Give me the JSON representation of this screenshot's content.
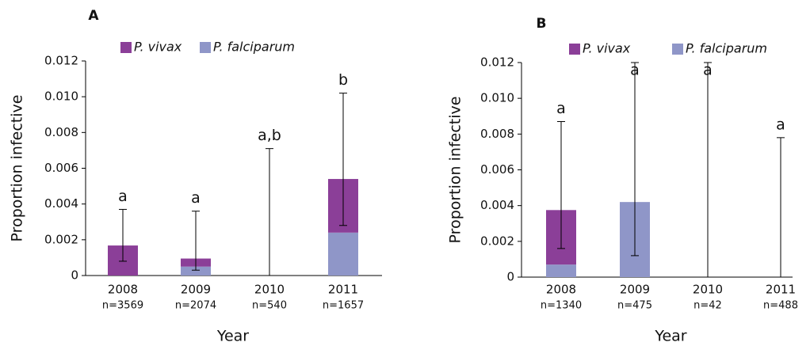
{
  "chart_data": [
    {
      "type": "bar",
      "stacked": true,
      "title": "A",
      "x_label": "Year",
      "y_label": "Proportion infective",
      "categories": [
        "2008",
        "2009",
        "2010",
        "2011"
      ],
      "sample_sizes": [
        "n=3569",
        "n=2074",
        "n=540",
        "n=1657"
      ],
      "series": [
        {
          "name": "P. vivax",
          "color": "#8b3f98",
          "values": [
            0.00168,
            0.00045,
            0,
            0.003
          ]
        },
        {
          "name": "P. falciparum",
          "color": "#8f96c8",
          "values": [
            0,
            0.0005,
            0,
            0.0024
          ]
        }
      ],
      "error_low": [
        0.0008,
        0.0003,
        0,
        0.0028
      ],
      "error_high": [
        0.0037,
        0.0036,
        0.0071,
        0.0102
      ],
      "annotations": [
        "a",
        "a",
        "a,b",
        "b"
      ],
      "ylim": [
        0,
        0.012
      ],
      "yticks": [
        0,
        0.002,
        0.004,
        0.006,
        0.008,
        {
          "value": 0.01,
          "label": "0.010"
        },
        0.012
      ]
    },
    {
      "type": "bar",
      "stacked": true,
      "title": "B",
      "x_label": "Year",
      "y_label": "Proportion infective",
      "categories": [
        "2008",
        "2009",
        "2010",
        "2011"
      ],
      "sample_sizes": [
        "n=1340",
        "n=475",
        "n=42",
        "n=488"
      ],
      "series": [
        {
          "name": "P. vivax",
          "color": "#8b3f98",
          "values": [
            0.00305,
            0,
            0,
            0
          ]
        },
        {
          "name": "P. falciparum",
          "color": "#8f96c8",
          "values": [
            0.0007,
            0.0042,
            0,
            0
          ]
        }
      ],
      "error_low": [
        0.0016,
        0.0012,
        0,
        0
      ],
      "error_high": [
        0.0087,
        0.012,
        0.012,
        0.0078
      ],
      "annotations": [
        "a",
        "a",
        "a",
        "a"
      ],
      "ylim": [
        0,
        0.012
      ],
      "yticks": [
        0,
        0.002,
        0.004,
        0.006,
        0.008,
        {
          "value": 0.01,
          "label": "0.010"
        },
        0.012
      ]
    }
  ]
}
